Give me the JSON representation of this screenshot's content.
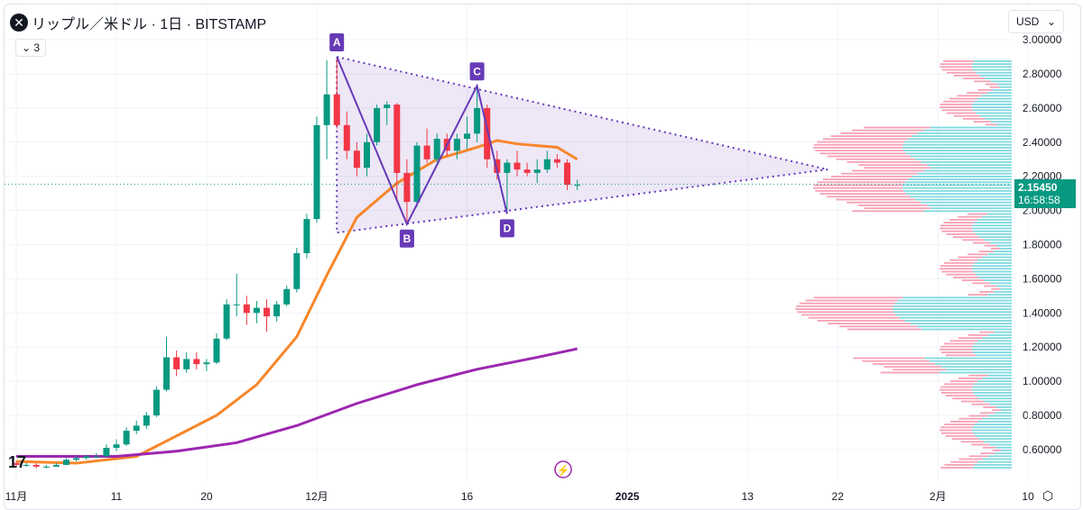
{
  "header": {
    "title": "リップル／米ドル · 1日 · BITSTAMP",
    "logo_icon": "xrp-logo-icon",
    "indicators_toggle": "3",
    "currency": "USD"
  },
  "price_tag": {
    "price": "2.15450",
    "countdown": "16:58:58",
    "color": "#089981"
  },
  "chart_data": {
    "type": "candlestick",
    "title": "リップル／米ドル · 1日 · BITSTAMP",
    "ylim": [
      0.45,
      3.0
    ],
    "y_ticks": [
      "3.00000",
      "2.80000",
      "2.60000",
      "2.40000",
      "2.20000",
      "2.00000",
      "1.80000",
      "1.60000",
      "1.40000",
      "1.20000",
      "1.00000",
      "0.80000",
      "0.60000"
    ],
    "x_ticks": [
      "11月",
      "11",
      "20",
      "12月",
      "16",
      "2025",
      "13",
      "22",
      "2月",
      "10"
    ],
    "up_color": "#089981",
    "down_color": "#f23645",
    "candles": [
      [
        "2024-11-01",
        0.52,
        0.53,
        0.5,
        0.51
      ],
      [
        "2024-11-02",
        0.51,
        0.52,
        0.5,
        0.51
      ],
      [
        "2024-11-03",
        0.51,
        0.52,
        0.49,
        0.5
      ],
      [
        "2024-11-04",
        0.5,
        0.51,
        0.49,
        0.5
      ],
      [
        "2024-11-05",
        0.5,
        0.52,
        0.5,
        0.51
      ],
      [
        "2024-11-06",
        0.51,
        0.55,
        0.51,
        0.54
      ],
      [
        "2024-11-07",
        0.54,
        0.56,
        0.53,
        0.55
      ],
      [
        "2024-11-08",
        0.55,
        0.57,
        0.54,
        0.56
      ],
      [
        "2024-11-09",
        0.56,
        0.58,
        0.55,
        0.56
      ],
      [
        "2024-11-10",
        0.56,
        0.63,
        0.56,
        0.61
      ],
      [
        "2024-11-11",
        0.61,
        0.66,
        0.59,
        0.63
      ],
      [
        "2024-11-12",
        0.63,
        0.73,
        0.62,
        0.71
      ],
      [
        "2024-11-13",
        0.71,
        0.77,
        0.69,
        0.74
      ],
      [
        "2024-11-14",
        0.74,
        0.82,
        0.72,
        0.8
      ],
      [
        "2024-11-15",
        0.8,
        0.97,
        0.79,
        0.95
      ],
      [
        "2024-11-16",
        0.95,
        1.26,
        0.94,
        1.14
      ],
      [
        "2024-11-17",
        1.14,
        1.18,
        1.03,
        1.07
      ],
      [
        "2024-11-18",
        1.07,
        1.17,
        1.05,
        1.13
      ],
      [
        "2024-11-19",
        1.13,
        1.17,
        1.07,
        1.1
      ],
      [
        "2024-11-20",
        1.1,
        1.13,
        1.06,
        1.11
      ],
      [
        "2024-11-21",
        1.11,
        1.28,
        1.1,
        1.25
      ],
      [
        "2024-11-22",
        1.25,
        1.48,
        1.24,
        1.45
      ],
      [
        "2024-11-23",
        1.45,
        1.63,
        1.38,
        1.45
      ],
      [
        "2024-11-24",
        1.45,
        1.5,
        1.33,
        1.4
      ],
      [
        "2024-11-25",
        1.4,
        1.47,
        1.34,
        1.43
      ],
      [
        "2024-11-26",
        1.43,
        1.48,
        1.29,
        1.38
      ],
      [
        "2024-11-27",
        1.38,
        1.47,
        1.35,
        1.45
      ],
      [
        "2024-11-28",
        1.45,
        1.56,
        1.44,
        1.54
      ],
      [
        "2024-11-29",
        1.54,
        1.78,
        1.52,
        1.75
      ],
      [
        "2024-11-30",
        1.75,
        1.98,
        1.72,
        1.95
      ],
      [
        "2024-12-01",
        1.95,
        2.55,
        1.93,
        2.5
      ],
      [
        "2024-12-02",
        2.5,
        2.88,
        2.3,
        2.68
      ],
      [
        "2024-12-03",
        2.68,
        2.9,
        2.48,
        2.5
      ],
      [
        "2024-12-04",
        2.5,
        2.58,
        2.3,
        2.35
      ],
      [
        "2024-12-05",
        2.35,
        2.4,
        2.2,
        2.25
      ],
      [
        "2024-12-06",
        2.25,
        2.45,
        2.2,
        2.4
      ],
      [
        "2024-12-07",
        2.4,
        2.62,
        2.38,
        2.6
      ],
      [
        "2024-12-08",
        2.6,
        2.64,
        2.5,
        2.62
      ],
      [
        "2024-12-09",
        2.62,
        2.63,
        2.05,
        2.22
      ],
      [
        "2024-12-10",
        2.22,
        2.3,
        1.92,
        2.05
      ],
      [
        "2024-12-11",
        2.05,
        2.4,
        2.02,
        2.38
      ],
      [
        "2024-12-12",
        2.38,
        2.48,
        2.28,
        2.3
      ],
      [
        "2024-12-13",
        2.3,
        2.45,
        2.28,
        2.42
      ],
      [
        "2024-12-14",
        2.42,
        2.45,
        2.32,
        2.35
      ],
      [
        "2024-12-15",
        2.35,
        2.45,
        2.3,
        2.42
      ],
      [
        "2024-12-16",
        2.42,
        2.55,
        2.36,
        2.45
      ],
      [
        "2024-12-17",
        2.45,
        2.73,
        2.4,
        2.6
      ],
      [
        "2024-12-18",
        2.6,
        2.62,
        2.25,
        2.3
      ],
      [
        "2024-12-19",
        2.3,
        2.35,
        2.18,
        2.22
      ],
      [
        "2024-12-20",
        2.22,
        2.3,
        1.98,
        2.28
      ],
      [
        "2024-12-21",
        2.28,
        2.35,
        2.2,
        2.24
      ],
      [
        "2024-12-22",
        2.24,
        2.28,
        2.2,
        2.22
      ],
      [
        "2024-12-23",
        2.22,
        2.3,
        2.16,
        2.24
      ],
      [
        "2024-12-24",
        2.24,
        2.35,
        2.22,
        2.3
      ],
      [
        "2024-12-25",
        2.3,
        2.33,
        2.25,
        2.28
      ],
      [
        "2024-12-26",
        2.28,
        2.3,
        2.12,
        2.15
      ],
      [
        "2024-12-27",
        2.15,
        2.18,
        2.12,
        2.15
      ]
    ],
    "series": [
      {
        "color": "#f7862a",
        "values": [
          [
            0,
            0.53
          ],
          [
            6,
            0.52
          ],
          [
            12,
            0.56
          ],
          [
            16,
            0.68
          ],
          [
            20,
            0.8
          ],
          [
            24,
            0.98
          ],
          [
            28,
            1.26
          ],
          [
            31,
            1.62
          ],
          [
            34,
            1.96
          ],
          [
            38,
            2.16
          ],
          [
            42,
            2.3
          ],
          [
            46,
            2.37
          ],
          [
            48,
            2.41
          ],
          [
            50,
            2.39
          ],
          [
            54,
            2.37
          ],
          [
            56,
            2.3
          ]
        ]
      },
      {
        "color": "#9c27b0",
        "values": [
          [
            0,
            0.56
          ],
          [
            10,
            0.56
          ],
          [
            16,
            0.59
          ],
          [
            22,
            0.64
          ],
          [
            28,
            0.74
          ],
          [
            34,
            0.87
          ],
          [
            40,
            0.98
          ],
          [
            46,
            1.07
          ],
          [
            52,
            1.14
          ],
          [
            56,
            1.19
          ]
        ]
      }
    ],
    "current_price": 2.1545,
    "pattern": {
      "points": [
        {
          "label": "A",
          "day": 32,
          "price": 2.9
        },
        {
          "label": "B",
          "day": 39,
          "price": 1.92
        },
        {
          "label": "C",
          "day": 46,
          "price": 2.73
        },
        {
          "label": "D",
          "day": 49,
          "price": 1.98
        }
      ],
      "triangle": {
        "start_day": 32,
        "upper": 2.9,
        "lower": 1.87,
        "apex_day": 81,
        "apex_price": 2.24
      },
      "color": "#673ab7"
    }
  }
}
